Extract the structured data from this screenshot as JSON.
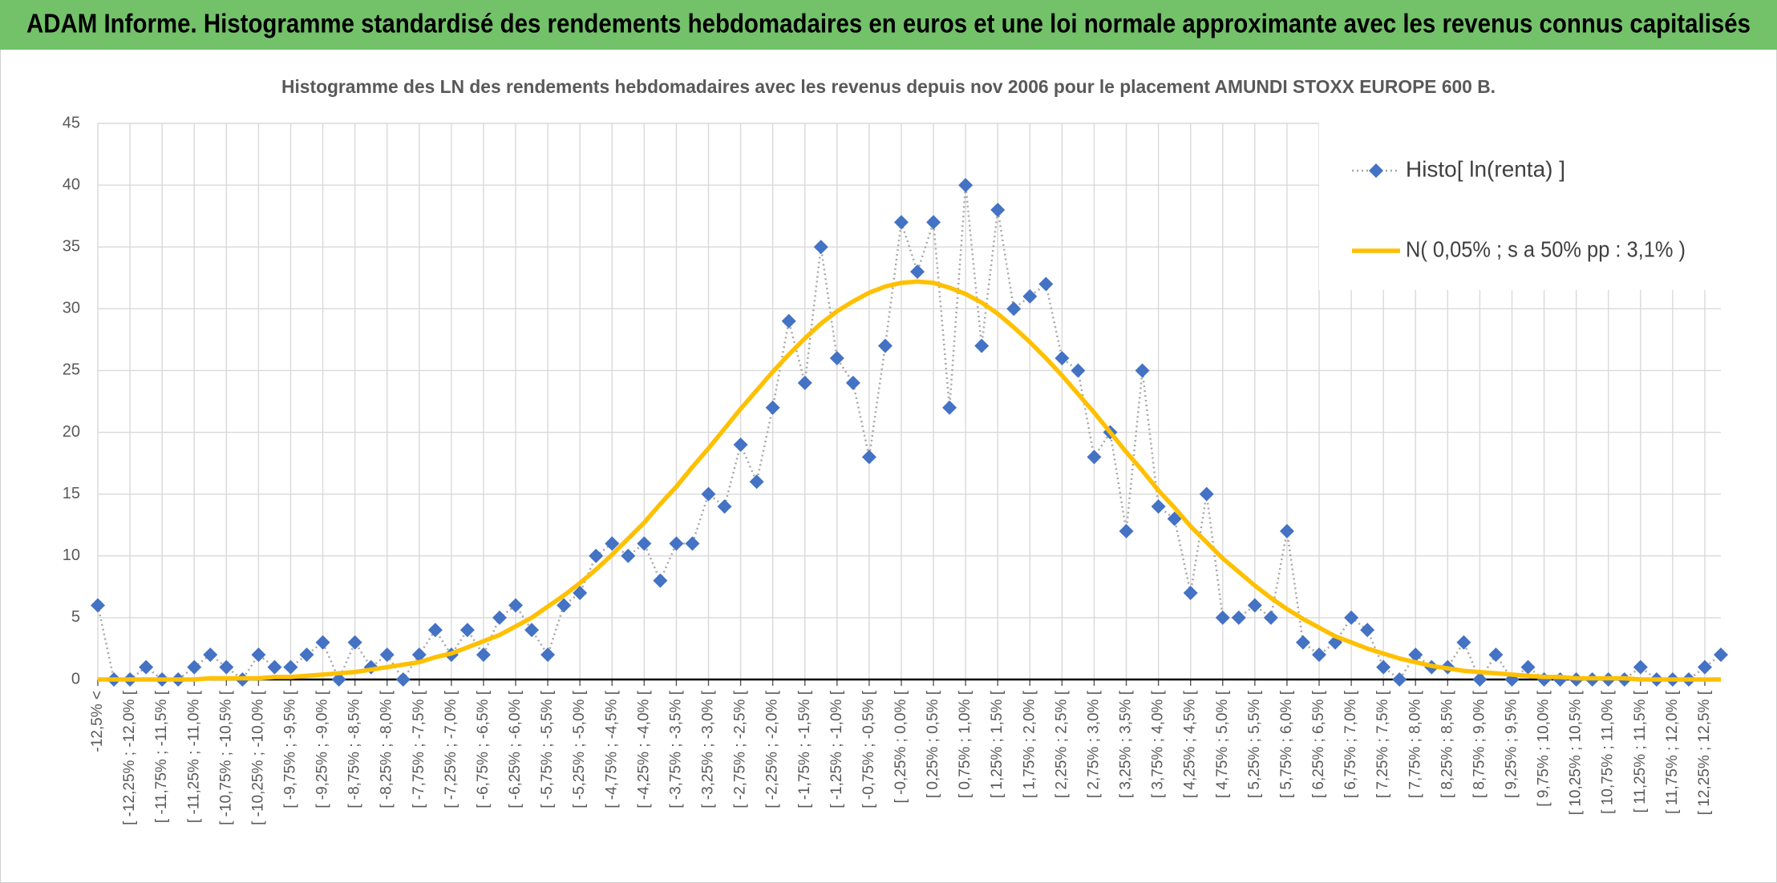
{
  "chart_data": {
    "type": "line",
    "title": "ADAM Informe. Histogramme standardisé des rendements hebdomadaires en euros et une loi normale approximante avec les revenus connus capitalisés",
    "subtitle": "Histogramme des LN des rendements hebdomadaires avec les revenus depuis nov 2006 pour le placement AMUNDI STOXX EUROPE 600 B.",
    "categories": [
      "-12,5% <",
      null,
      "[ -12,25% ; -12,0% [",
      null,
      "[ -11,75% ; -11,5% [",
      null,
      "[ -11,25% ; -11,0% [",
      null,
      "[ -10,75% ; -10,5% [",
      null,
      "[ -10,25% ; -10,0% [",
      null,
      "[ -9,75% ; -9,5% [",
      null,
      "[ -9,25% ; -9,0% [",
      null,
      "[ -8,75% ; -8,5% [",
      null,
      "[ -8,25% ; -8,0% [",
      null,
      "[ -7,75% ; -7,5% [",
      null,
      "[ -7,25% ; -7,0% [",
      null,
      "[ -6,75% ; -6,5% [",
      null,
      "[ -6,25% ; -6,0% [",
      null,
      "[ -5,75% ; -5,5% [",
      null,
      "[ -5,25% ; -5,0% [",
      null,
      "[ -4,75% ; -4,5% [",
      null,
      "[ -4,25% ; -4,0% [",
      null,
      "[ -3,75% ; -3,5% [",
      null,
      "[ -3,25% ; -3,0% [",
      null,
      "[ -2,75% ; -2,5% [",
      null,
      "[ -2,25% ; -2,0% [",
      null,
      "[ -1,75% ; -1,5% [",
      null,
      "[ -1,25% ; -1,0% [",
      null,
      "[ -0,75% ; -0,5% [",
      null,
      "[ -0,25% ; 0,0% [",
      null,
      "[ 0,25% ; 0,5% [",
      null,
      "[ 0,75% ; 1,0% [",
      null,
      "[ 1,25% ; 1,5% [",
      null,
      "[ 1,75% ; 2,0% [",
      null,
      "[ 2,25% ; 2,5% [",
      null,
      "[ 2,75% ; 3,0% [",
      null,
      "[ 3,25% ; 3,5% [",
      null,
      "[ 3,75% ; 4,0% [",
      null,
      "[ 4,25% ; 4,5% [",
      null,
      "[ 4,75% ; 5,0% [",
      null,
      "[ 5,25% ; 5,5% [",
      null,
      "[ 5,75% ; 6,0% [",
      null,
      "[ 6,25% ; 6,5% [",
      null,
      "[ 6,75% ; 7,0% [",
      null,
      "[ 7,25% ; 7,5% [",
      null,
      "[ 7,75% ; 8,0% [",
      null,
      "[ 8,25% ; 8,5% [",
      null,
      "[ 8,75% ; 9,0% [",
      null,
      "[ 9,25% ; 9,5% [",
      null,
      "[ 9,75% ; 10,0% [",
      null,
      "[ 10,25% ; 10,5% [",
      null,
      "[ 10,75% ; 11,0% [",
      null,
      "[ 11,25% ; 11,5% [",
      null,
      "[ 11,75% ; 12,0% [",
      null,
      "[ 12,25% ; 12,5% [",
      null
    ],
    "series": [
      {
        "name": "Histo[ ln(renta) ]",
        "color": "#4472c4",
        "line_color": "#a6a6a6",
        "values": [
          6,
          0,
          0,
          1,
          0,
          0,
          1,
          2,
          1,
          0,
          2,
          1,
          1,
          2,
          3,
          0,
          3,
          1,
          2,
          0,
          2,
          4,
          2,
          4,
          2,
          5,
          6,
          4,
          2,
          6,
          7,
          10,
          11,
          10,
          11,
          8,
          11,
          11,
          15,
          14,
          19,
          16,
          22,
          29,
          24,
          35,
          26,
          24,
          18,
          27,
          37,
          33,
          37,
          22,
          40,
          27,
          38,
          30,
          31,
          32,
          26,
          25,
          18,
          20,
          12,
          25,
          14,
          13,
          7,
          15,
          5,
          5,
          6,
          5,
          12,
          3,
          2,
          3,
          5,
          4,
          1,
          0,
          2,
          1,
          1,
          3,
          0,
          2,
          0,
          1,
          0,
          0,
          0,
          0,
          0,
          0,
          1,
          0,
          0,
          0,
          1,
          2
        ]
      },
      {
        "name": "N( 0,05% ; s a 50% pp : 3,1% )",
        "color": "#ffc000",
        "values": [
          0,
          0,
          0,
          0,
          0,
          0,
          0,
          0.1,
          0.1,
          0.1,
          0.1,
          0.2,
          0.2,
          0.3,
          0.4,
          0.5,
          0.6,
          0.8,
          1,
          1.2,
          1.4,
          1.8,
          2.1,
          2.6,
          3.1,
          3.6,
          4.3,
          5,
          5.9,
          6.8,
          7.8,
          8.9,
          10.1,
          11.4,
          12.7,
          14.2,
          15.6,
          17.2,
          18.7,
          20.3,
          21.9,
          23.4,
          24.9,
          26.3,
          27.6,
          28.8,
          29.8,
          30.6,
          31.3,
          31.8,
          32.1,
          32.2,
          32.1,
          31.7,
          31.2,
          30.5,
          29.6,
          28.5,
          27.3,
          26,
          24.6,
          23.1,
          21.6,
          20,
          18.4,
          16.9,
          15.3,
          13.9,
          12.4,
          11.1,
          9.8,
          8.7,
          7.6,
          6.6,
          5.7,
          4.9,
          4.2,
          3.5,
          3,
          2.5,
          2.1,
          1.7,
          1.4,
          1.1,
          0.9,
          0.7,
          0.6,
          0.5,
          0.4,
          0.3,
          0.2,
          0.2,
          0.1,
          0.1,
          0.1,
          0.1,
          0,
          0,
          0,
          0,
          0,
          0
        ]
      }
    ],
    "ylim": [
      0,
      45
    ],
    "yticks": [
      0,
      5,
      10,
      15,
      20,
      25,
      30,
      35,
      40,
      45
    ],
    "grid": true,
    "legend": "upper right"
  }
}
